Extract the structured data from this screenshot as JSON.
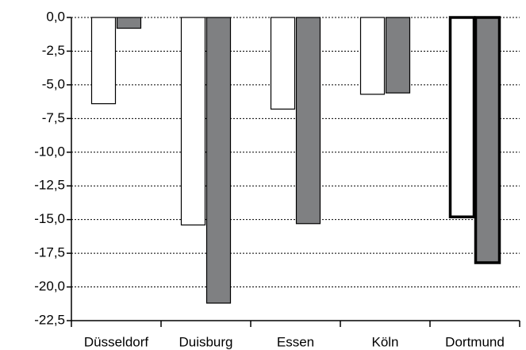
{
  "chart_data": {
    "type": "bar",
    "categories": [
      "Düsseldorf",
      "Duisburg",
      "Essen",
      "Köln",
      "Dortmund"
    ],
    "series": [
      {
        "color": "#ffffff",
        "values": [
          -6.4,
          -15.4,
          -6.8,
          -5.7,
          -14.8
        ]
      },
      {
        "color": "#7f8082",
        "values": [
          -0.8,
          -21.2,
          -15.3,
          -5.6,
          -18.2
        ]
      }
    ],
    "highlight_index": 4,
    "ylim": [
      -22.5,
      0
    ],
    "yticks": [
      {
        "value": 0,
        "label": "0,0"
      },
      {
        "value": -2.5,
        "label": "-2,5"
      },
      {
        "value": -5,
        "label": "-5,0"
      },
      {
        "value": -7.5,
        "label": "-7,5"
      },
      {
        "value": -10,
        "label": "-10,0"
      },
      {
        "value": -12.5,
        "label": "-12,5"
      },
      {
        "value": -15,
        "label": "-15,0"
      },
      {
        "value": -17.5,
        "label": "-17,5"
      },
      {
        "value": -20,
        "label": "-20,0"
      },
      {
        "value": -22.5,
        "label": "-22,5"
      }
    ],
    "grid": true
  }
}
